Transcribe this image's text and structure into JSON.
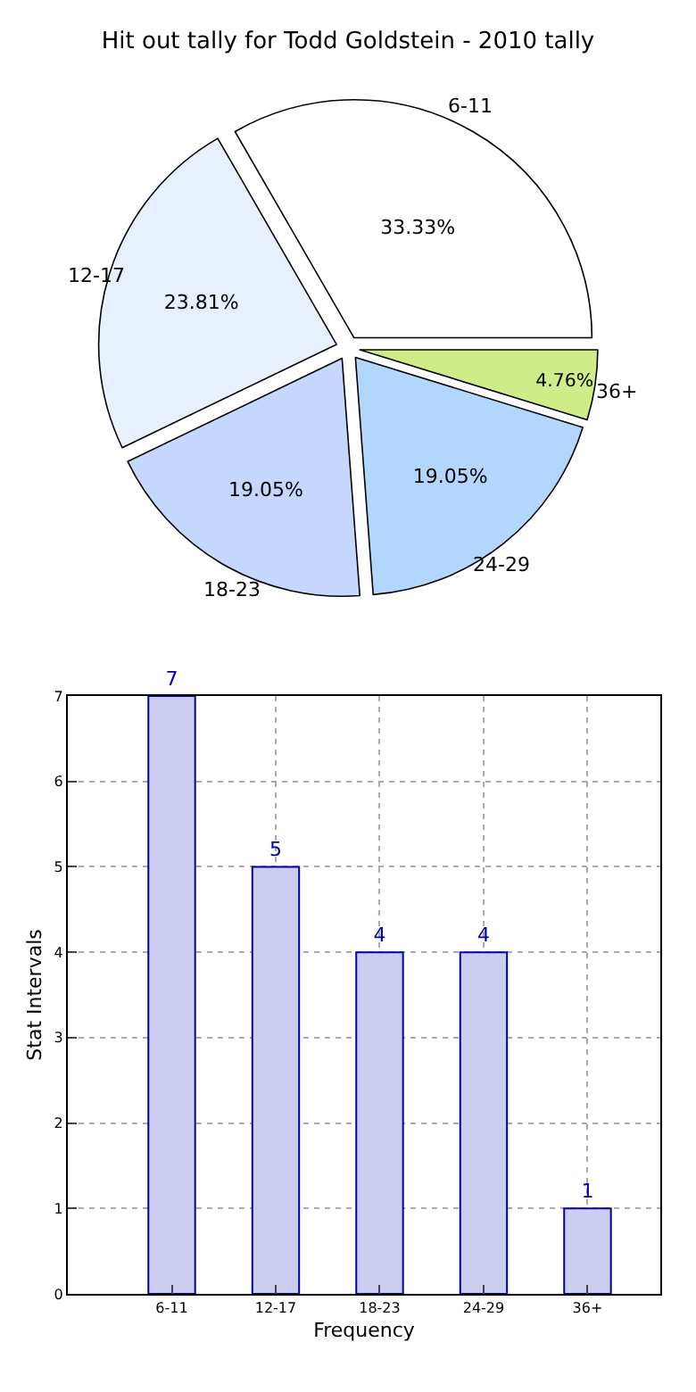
{
  "chart_data": [
    {
      "type": "pie",
      "title": "Hit out tally for Todd Goldstein - 2010 tally",
      "categories": [
        "6-11",
        "12-17",
        "18-23",
        "24-29",
        "36+"
      ],
      "values": [
        33.33,
        23.81,
        19.05,
        19.05,
        4.76
      ],
      "colors": [
        "#ffffff",
        "#e8f0fe",
        "#c6d7fe",
        "#b3d6ff",
        "#cfec88"
      ],
      "value_labels": [
        "33.33%",
        "23.81%",
        "19.05%",
        "19.05%",
        "4.76%"
      ]
    },
    {
      "type": "bar",
      "xlabel": "Frequency",
      "ylabel": "Stat Intervals",
      "categories": [
        "6-11",
        "12-17",
        "18-23",
        "24-29",
        "36+"
      ],
      "values": [
        7,
        5,
        4,
        4,
        1
      ],
      "color": "#ccccee",
      "ylim": [
        0,
        7
      ],
      "yticks": [
        0,
        1,
        2,
        3,
        4,
        5,
        6,
        7
      ],
      "grid": true,
      "data_labels": true
    }
  ]
}
